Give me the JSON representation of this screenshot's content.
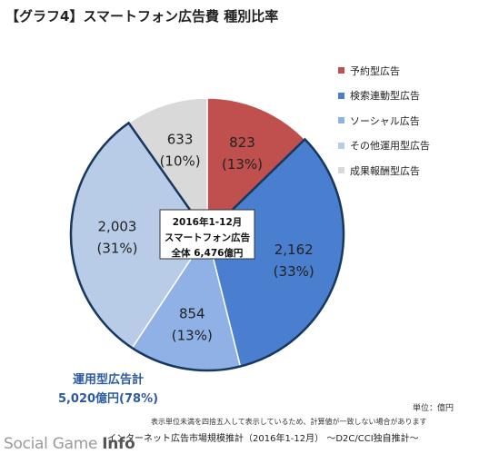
{
  "title": "【グラフ4】スマートフォン広告費 種別比率",
  "chart_data": {
    "type": "pie",
    "title": "【グラフ4】スマートフォン広告費 種別比率",
    "categories": [
      "予約型広告",
      "検索連動型広告",
      "ソーシャル広告",
      "その他運用型広告",
      "成果報酬型広告"
    ],
    "values": [
      823,
      2162,
      854,
      2003,
      633
    ],
    "percent_labels": [
      "(13%)",
      "(33%)",
      "(13%)",
      "(31%)",
      "(10%)"
    ],
    "value_labels": [
      "823",
      "2,162",
      "854",
      "2,003",
      "633"
    ],
    "colors": [
      "#c0504d",
      "#4a7fd0",
      "#8fb1e6",
      "#b8cce8",
      "#d9d9d9"
    ],
    "center_label": [
      "2016年1-12月",
      "スマートフォン広告",
      "全体 6,476億円"
    ],
    "legend_position": "right"
  },
  "legend": {
    "items": [
      {
        "label": "予約型広告",
        "color": "#c0504d"
      },
      {
        "label": "検索連動型広告",
        "color": "#4a7fd0"
      },
      {
        "label": "ソーシャル広告",
        "color": "#8fb1e6"
      },
      {
        "label": "その他運用型広告",
        "color": "#b8cce8"
      },
      {
        "label": "成果報酬型広告",
        "color": "#d9d9d9"
      }
    ]
  },
  "annotation": {
    "group_title": "運用型広告計",
    "group_value": "5,020億円(78%)",
    "highlight_color": "#17375e"
  },
  "unit_note": "単位：億円",
  "rounding_note": "表示単位未満を四捨五入して表示しているため、計算値が一致しない場合があります",
  "source_note": "インターネット広告市場規模推計（2016年1-12月） ～D2C/CCI独自推計～",
  "watermark": {
    "prefix": "Social Game ",
    "suffix": "Info"
  }
}
